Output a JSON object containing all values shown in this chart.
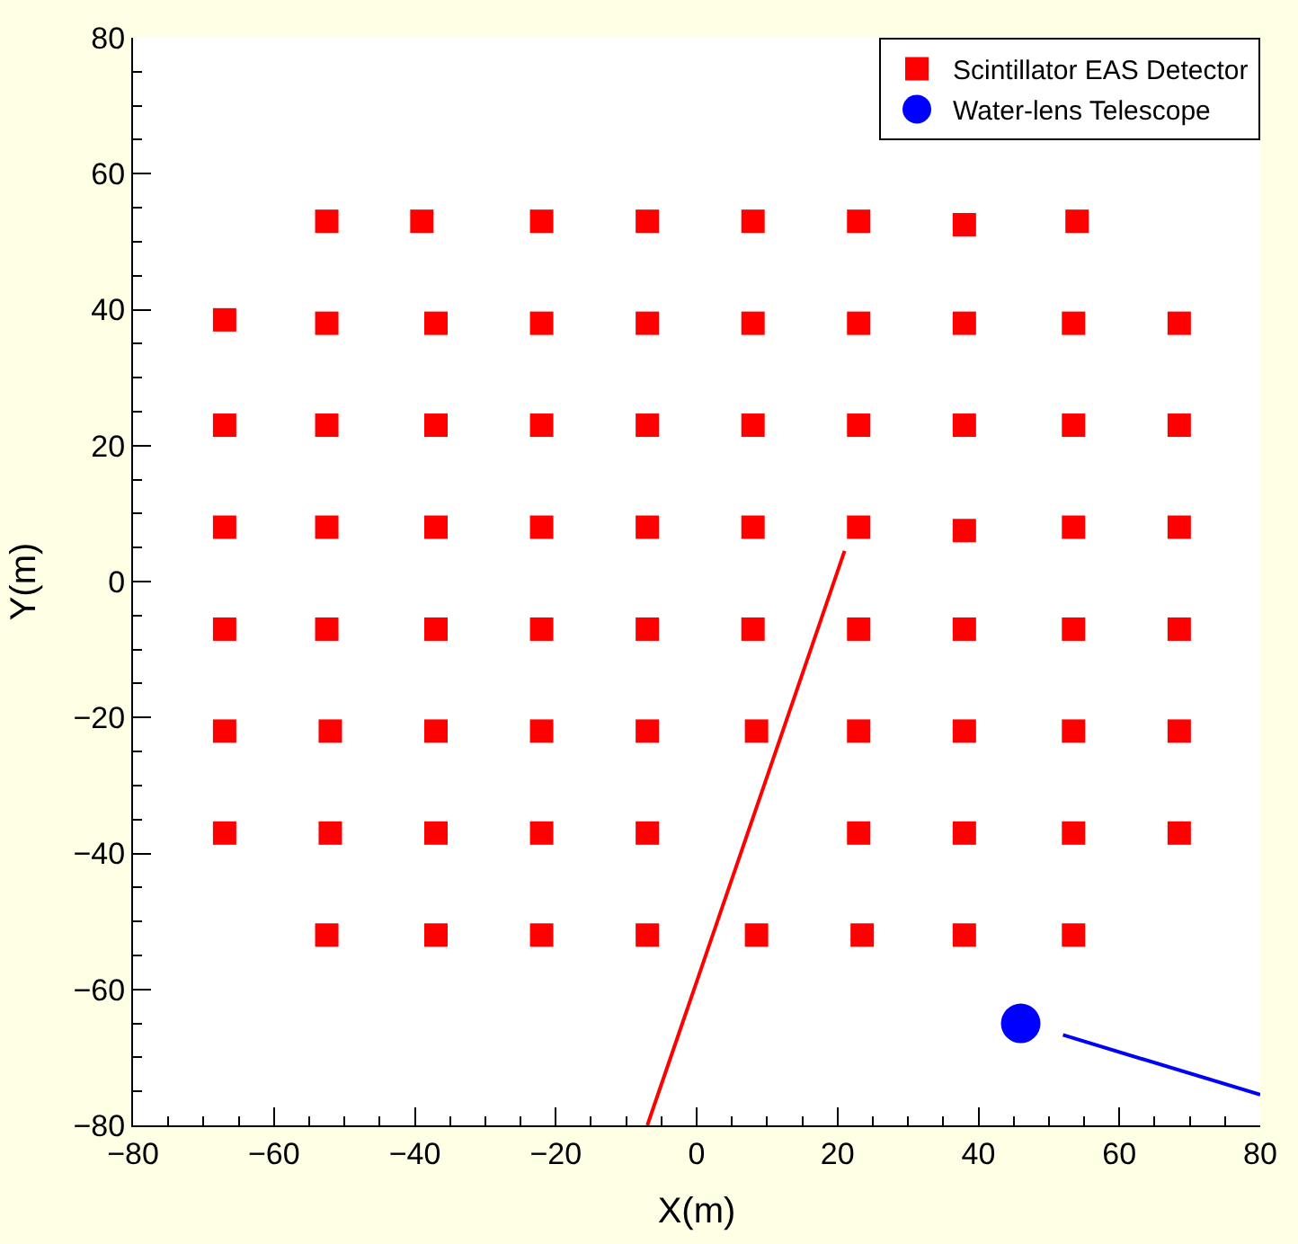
{
  "chart_data": {
    "type": "scatter",
    "xlabel": "X(m)",
    "ylabel": "Y(m)",
    "xlim": [
      -80,
      80
    ],
    "ylim": [
      -80,
      80
    ],
    "xticks": [
      -80,
      -60,
      -40,
      -20,
      0,
      20,
      40,
      60,
      80
    ],
    "yticks": [
      -80,
      -60,
      -40,
      -20,
      0,
      20,
      40,
      60,
      80
    ],
    "legend": "top right",
    "series": [
      {
        "name": "Scintillator EAS Detector",
        "color": "#ff0000",
        "marker": "square",
        "x": [
          -52.5,
          -39,
          -22,
          -7,
          8,
          23,
          38,
          54,
          -67,
          -52.5,
          -37,
          -22,
          -7,
          8,
          23,
          38,
          53.5,
          68.5,
          -67,
          -52.5,
          -37,
          -22,
          -7,
          8,
          23,
          38,
          53.5,
          68.5,
          -67,
          -52.5,
          -37,
          -22,
          -7,
          8,
          23,
          38,
          53.5,
          68.5,
          -67,
          -52.5,
          -37,
          -22,
          -7,
          8,
          23,
          38,
          53.5,
          68.5,
          -67,
          -52,
          -37,
          -22,
          -7,
          8.5,
          23,
          38,
          53.5,
          68.5,
          -67,
          -52,
          -37,
          -22,
          -7,
          23,
          38,
          53.5,
          68.5,
          -52.5,
          -37,
          -22,
          -7,
          8.5,
          23.5,
          38,
          53.5
        ],
        "values": [
          53,
          53,
          53,
          53,
          53,
          53,
          52.5,
          53,
          38.5,
          38,
          38,
          38,
          38,
          38,
          38,
          38,
          38,
          38,
          23,
          23,
          23,
          23,
          23,
          23,
          23,
          23,
          23,
          23,
          8,
          8,
          8,
          8,
          8,
          8,
          8,
          7.5,
          8,
          8,
          -7,
          -7,
          -7,
          -7,
          -7,
          -7,
          -7,
          -7,
          -7,
          -7,
          -22,
          -22,
          -22,
          -22,
          -22,
          -22,
          -22,
          -22,
          -22,
          -22,
          -37,
          -37,
          -37,
          -37,
          -37,
          -37,
          -37,
          -37,
          -37,
          -52,
          -52,
          -52,
          -52,
          -52,
          -52,
          -52,
          -52
        ]
      },
      {
        "name": "Water-lens Telescope",
        "color": "#0000ff",
        "marker": "circle",
        "x": [
          46
        ],
        "values": [
          -65
        ]
      },
      {
        "type": "line",
        "color": "#ff0000",
        "marker": "none",
        "x": [
          21,
          -7
        ],
        "values": [
          4.5,
          -80
        ]
      },
      {
        "type": "line",
        "color": "#0000ff",
        "marker": "none",
        "x": [
          52,
          80
        ],
        "values": [
          -66.7,
          -75.5
        ]
      }
    ]
  }
}
